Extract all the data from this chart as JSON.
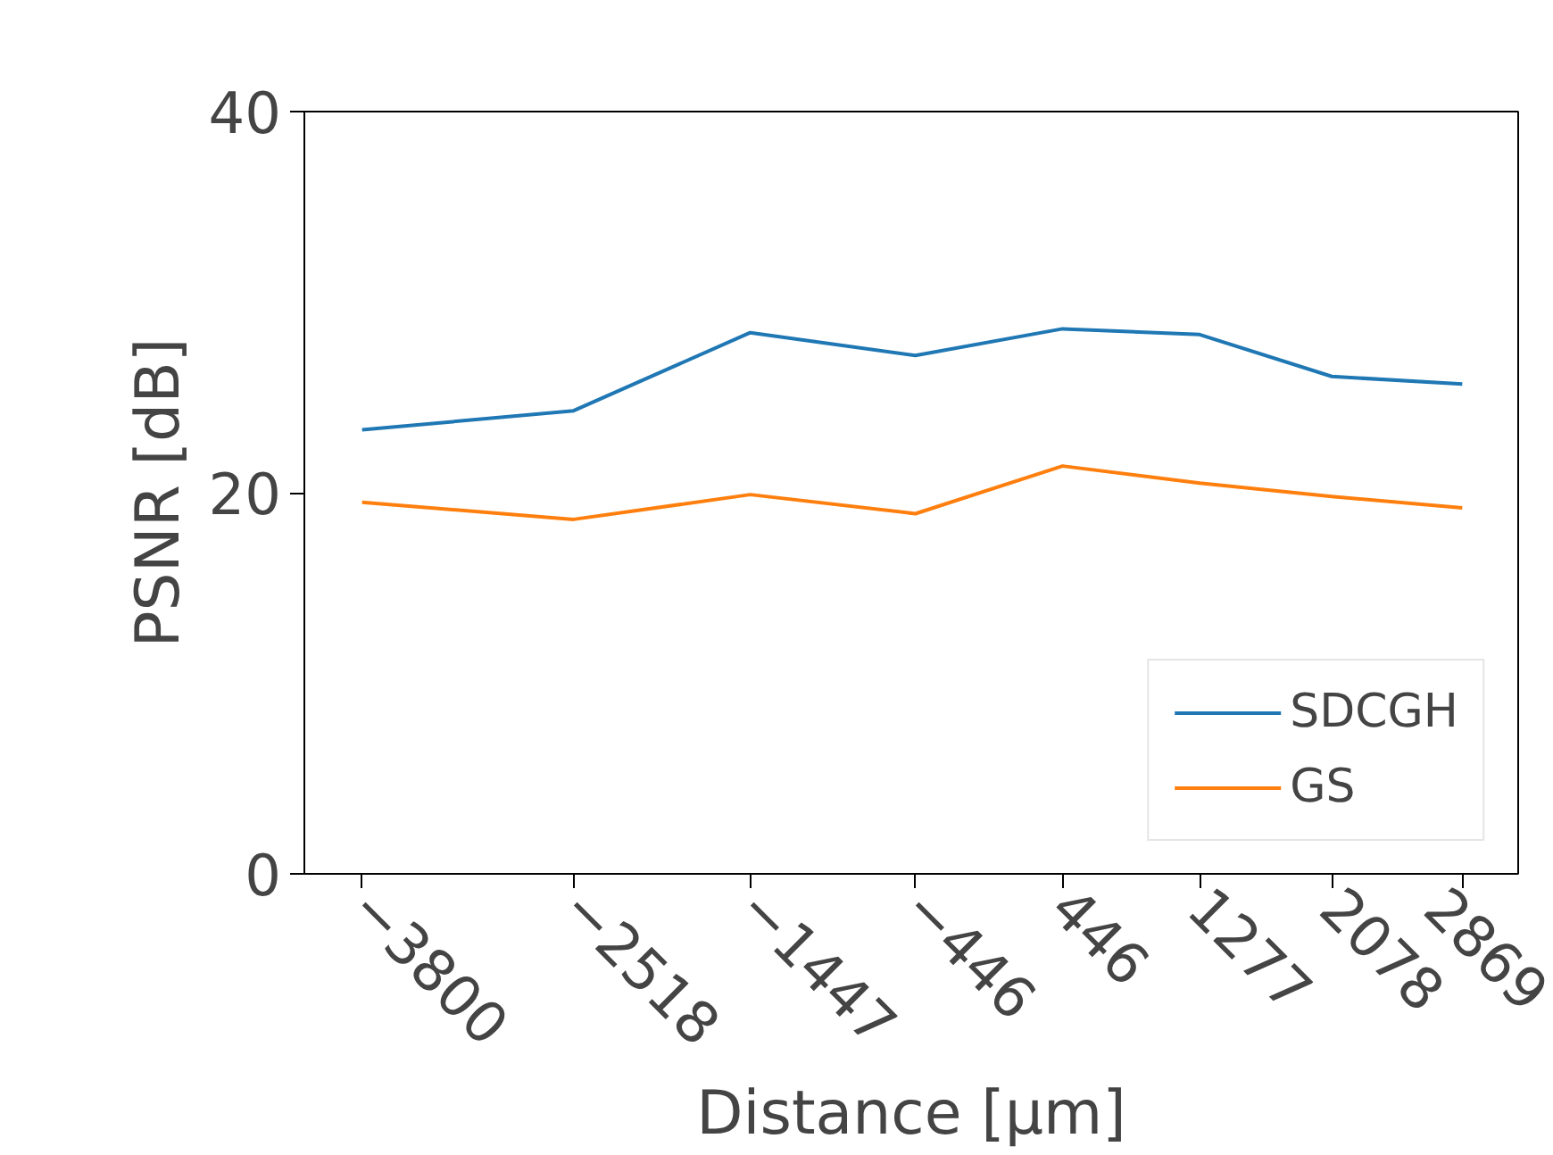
{
  "chart_data": {
    "type": "line",
    "xlabel": "Distance [µm]",
    "ylabel": "PSNR [dB]",
    "x": [
      -3800,
      -2518,
      -1447,
      -446,
      446,
      1277,
      2078,
      2869
    ],
    "series": [
      {
        "name": "SDCGH",
        "color": "#1f77b4",
        "values": [
          23.3,
          24.3,
          28.4,
          27.2,
          28.6,
          28.3,
          26.1,
          25.7
        ]
      },
      {
        "name": "GS",
        "color": "#ff7f0e",
        "values": [
          19.5,
          18.6,
          19.9,
          18.9,
          21.4,
          20.5,
          19.8,
          19.2
        ]
      }
    ],
    "xlim": [
      -4150,
      3208
    ],
    "ylim": [
      0,
      40
    ],
    "xticks": [
      {
        "value": -3800,
        "label": "−3800"
      },
      {
        "value": -2518,
        "label": "−2518"
      },
      {
        "value": -1447,
        "label": "−1447"
      },
      {
        "value": -446,
        "label": "−446"
      },
      446,
      1277,
      2078,
      2869
    ],
    "yticks": [
      0,
      20,
      40
    ],
    "grid": false,
    "legend": "bottom right",
    "marker": "none",
    "line_style": "solid"
  }
}
